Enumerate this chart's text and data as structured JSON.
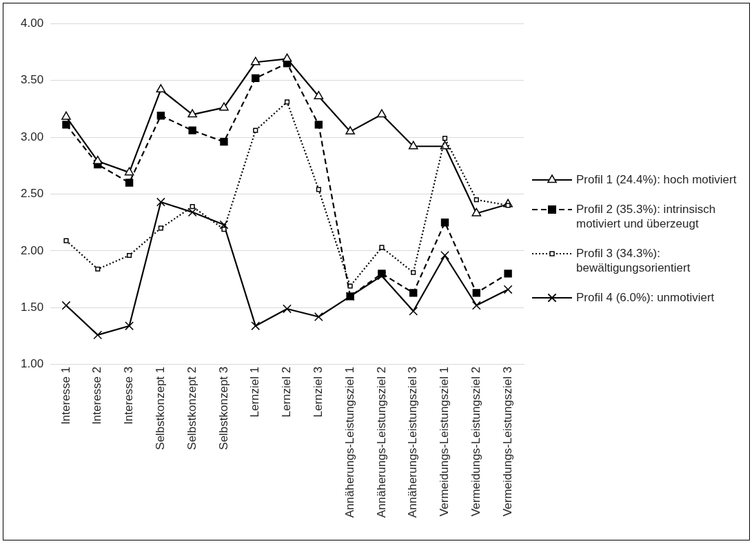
{
  "chart_data": {
    "type": "line",
    "categories": [
      "Interesse 1",
      "Interesse 2",
      "Interesse 3",
      "Selbstkonzept 1",
      "Selbstkonzept 2",
      "Selbstkonzept 3",
      "Lernziel 1",
      "Lernziel 2",
      "Lernziel 3",
      "Annäherungs-Leistungsziel 1",
      "Annäherungs-Leistungsziel 2",
      "Annäherungs-Leistungsziel 3",
      "Vermeidungs-Leistungsziel 1",
      "Vermeidungs-Leistungsziel 2",
      "Vermeidungs-Leistungsziel 3"
    ],
    "series": [
      {
        "name": "Profil 1 (24.4%): hoch motiviert",
        "color": "#000000",
        "marker": "triangle",
        "line_style": "solid",
        "values": [
          3.18,
          2.79,
          2.69,
          3.42,
          3.2,
          3.26,
          3.66,
          3.69,
          3.36,
          3.05,
          3.2,
          2.92,
          2.92,
          2.33,
          2.41
        ]
      },
      {
        "name": "Profil 2 (35.3%): intrinsisch motiviert und überzeugt",
        "color": "#000000",
        "marker": "square",
        "line_style": "dashed",
        "values": [
          3.11,
          2.76,
          2.6,
          3.19,
          3.06,
          2.96,
          3.52,
          3.65,
          3.11,
          1.6,
          1.8,
          1.63,
          2.25,
          1.63,
          1.8
        ]
      },
      {
        "name": "Profil 3 (34.3%): bewältigungsorientiert",
        "color": "#000000",
        "marker": "square",
        "line_style": "dotted",
        "values": [
          2.09,
          1.84,
          1.96,
          2.2,
          2.39,
          2.19,
          3.06,
          3.31,
          2.54,
          1.69,
          2.03,
          1.81,
          2.99,
          2.45,
          2.4
        ]
      },
      {
        "name": "Profil 4 (6.0%): unmotiviert",
        "color": "#000000",
        "marker": "cross",
        "line_style": "solid",
        "values": [
          1.52,
          1.26,
          1.34,
          2.43,
          2.34,
          2.23,
          1.34,
          1.49,
          1.42,
          1.6,
          1.78,
          1.47,
          1.96,
          1.52,
          1.66
        ]
      }
    ],
    "ylim": [
      1,
      4
    ],
    "yticks": [
      {
        "value": 1,
        "label": "1.00"
      },
      {
        "value": 1.5,
        "label": "1.50"
      },
      {
        "value": 2,
        "label": "2.00"
      },
      {
        "value": 2.5,
        "label": "2.50"
      },
      {
        "value": 3,
        "label": "3.00"
      },
      {
        "value": 3.5,
        "label": "3.50"
      },
      {
        "value": 4,
        "label": "4.00"
      }
    ],
    "grid": "y",
    "legend": "right"
  }
}
